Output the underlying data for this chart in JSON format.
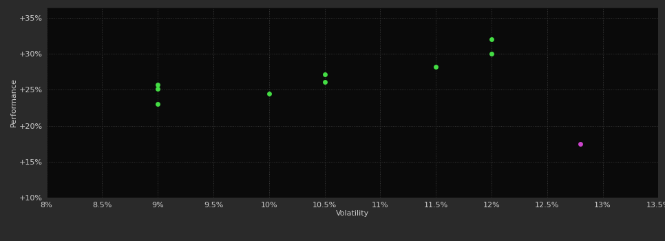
{
  "background_color": "#2a2a2a",
  "plot_bg_color": "#0a0a0a",
  "grid_color": "#3a3a3a",
  "green_points": [
    [
      0.09,
      0.23
    ],
    [
      0.09,
      0.251
    ],
    [
      0.09,
      0.257
    ],
    [
      0.1,
      0.245
    ],
    [
      0.105,
      0.272
    ],
    [
      0.105,
      0.261
    ],
    [
      0.115,
      0.282
    ],
    [
      0.12,
      0.32
    ],
    [
      0.12,
      0.3
    ]
  ],
  "pink_points": [
    [
      0.128,
      0.175
    ]
  ],
  "green_color": "#44dd44",
  "pink_color": "#cc44cc",
  "xlabel": "Volatility",
  "ylabel": "Performance",
  "xlim": [
    0.08,
    0.135
  ],
  "ylim": [
    0.1,
    0.365
  ],
  "xtick_values": [
    0.08,
    0.085,
    0.09,
    0.095,
    0.1,
    0.105,
    0.11,
    0.115,
    0.12,
    0.125,
    0.13,
    0.135
  ],
  "ytick_values": [
    0.1,
    0.15,
    0.2,
    0.25,
    0.3,
    0.35
  ],
  "ytick_labels": [
    "+10%",
    "+15%",
    "+20%",
    "+25%",
    "+30%",
    "+35%"
  ],
  "xtick_labels": [
    "8%",
    "8.5%",
    "9%",
    "9.5%",
    "10%",
    "10.5%",
    "11%",
    "11.5%",
    "12%",
    "12.5%",
    "13%",
    "13.5%"
  ],
  "text_color": "#cccccc",
  "marker_size": 5,
  "tick_fontsize": 8,
  "label_fontsize": 8
}
